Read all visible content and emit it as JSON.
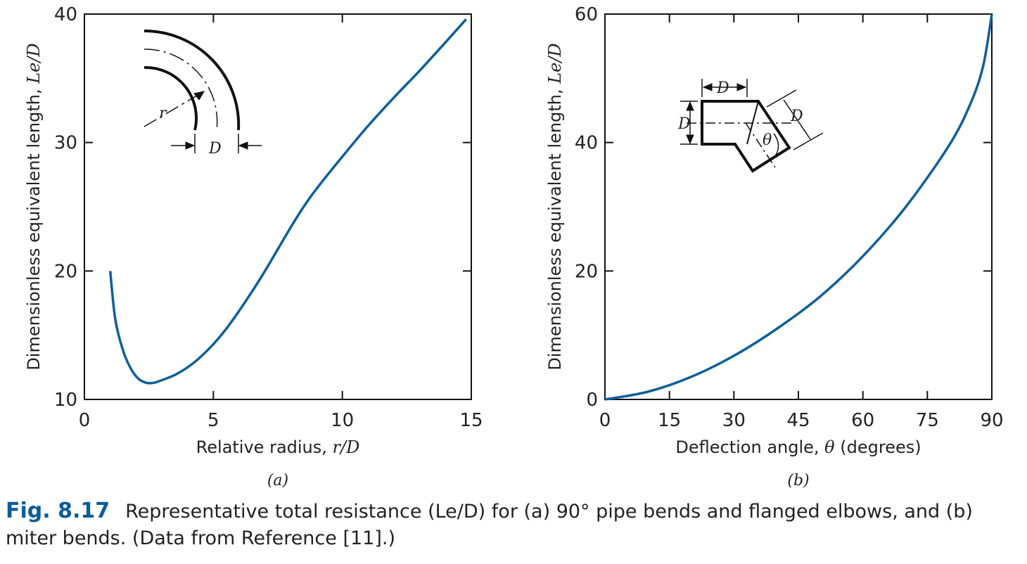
{
  "colors": {
    "curve": "#0e5f98",
    "figure_label": "#0d5c9a",
    "axis": "#111111"
  },
  "chart_data": [
    {
      "type": "line",
      "panel_label": "(a)",
      "xlabel_text": "Relative radius, ",
      "xlabel_var": "r/D",
      "ylabel_text": "Dimensionless equivalent length, ",
      "ylabel_var": "Le/D",
      "xlim": [
        0,
        15
      ],
      "ylim": [
        10,
        40
      ],
      "xticks": [
        "0",
        "5",
        "10",
        "15"
      ],
      "yticks": [
        "10",
        "20",
        "30",
        "40"
      ],
      "grid": false,
      "diagram_labels": {
        "r": "r",
        "D": "D"
      },
      "series": [
        {
          "x": [
            1,
            1.2,
            1.5,
            1.8,
            2.1,
            2.4,
            2.7,
            3.0,
            3.5,
            4.0,
            4.5,
            5.0,
            5.5,
            6.0,
            6.5,
            7.0,
            7.5,
            8.0,
            8.5,
            9.0,
            10.0,
            11.0,
            12.0,
            13.0,
            14.0,
            14.8
          ],
          "y": [
            20,
            16.2,
            13.8,
            12.4,
            11.6,
            11.3,
            11.3,
            11.5,
            11.9,
            12.5,
            13.3,
            14.3,
            15.5,
            16.9,
            18.4,
            20.0,
            21.7,
            23.4,
            25.0,
            26.4,
            28.9,
            31.3,
            33.5,
            35.6,
            37.8,
            39.6
          ]
        }
      ]
    },
    {
      "type": "line",
      "panel_label": "(b)",
      "xlabel_text": "Deflection angle, ",
      "xlabel_var": "θ",
      "xlabel_unit": " (degrees)",
      "ylabel_text": "Dimensionless equivalent length, ",
      "ylabel_var": "Le/D",
      "xlim": [
        0,
        90
      ],
      "ylim": [
        0,
        60
      ],
      "xticks": [
        "0",
        "15",
        "30",
        "45",
        "60",
        "75",
        "90"
      ],
      "yticks": [
        "0",
        "20",
        "40",
        "60"
      ],
      "grid": false,
      "diagram_labels": {
        "D": "D",
        "theta": "θ"
      },
      "series": [
        {
          "x": [
            0,
            10,
            20,
            30,
            40,
            50,
            60,
            70,
            80,
            85,
            88,
            90
          ],
          "y": [
            0,
            1.2,
            3.5,
            6.8,
            11.0,
            16.0,
            22.3,
            30.0,
            39.5,
            46.0,
            52.0,
            60.0
          ]
        }
      ]
    }
  ],
  "caption": {
    "figure_label": "Fig. 8.17",
    "text": "Representative total resistance (Le/D) for (a) 90° pipe bends and flanged elbows, and (b) miter bends. (Data from Reference [11].)"
  }
}
